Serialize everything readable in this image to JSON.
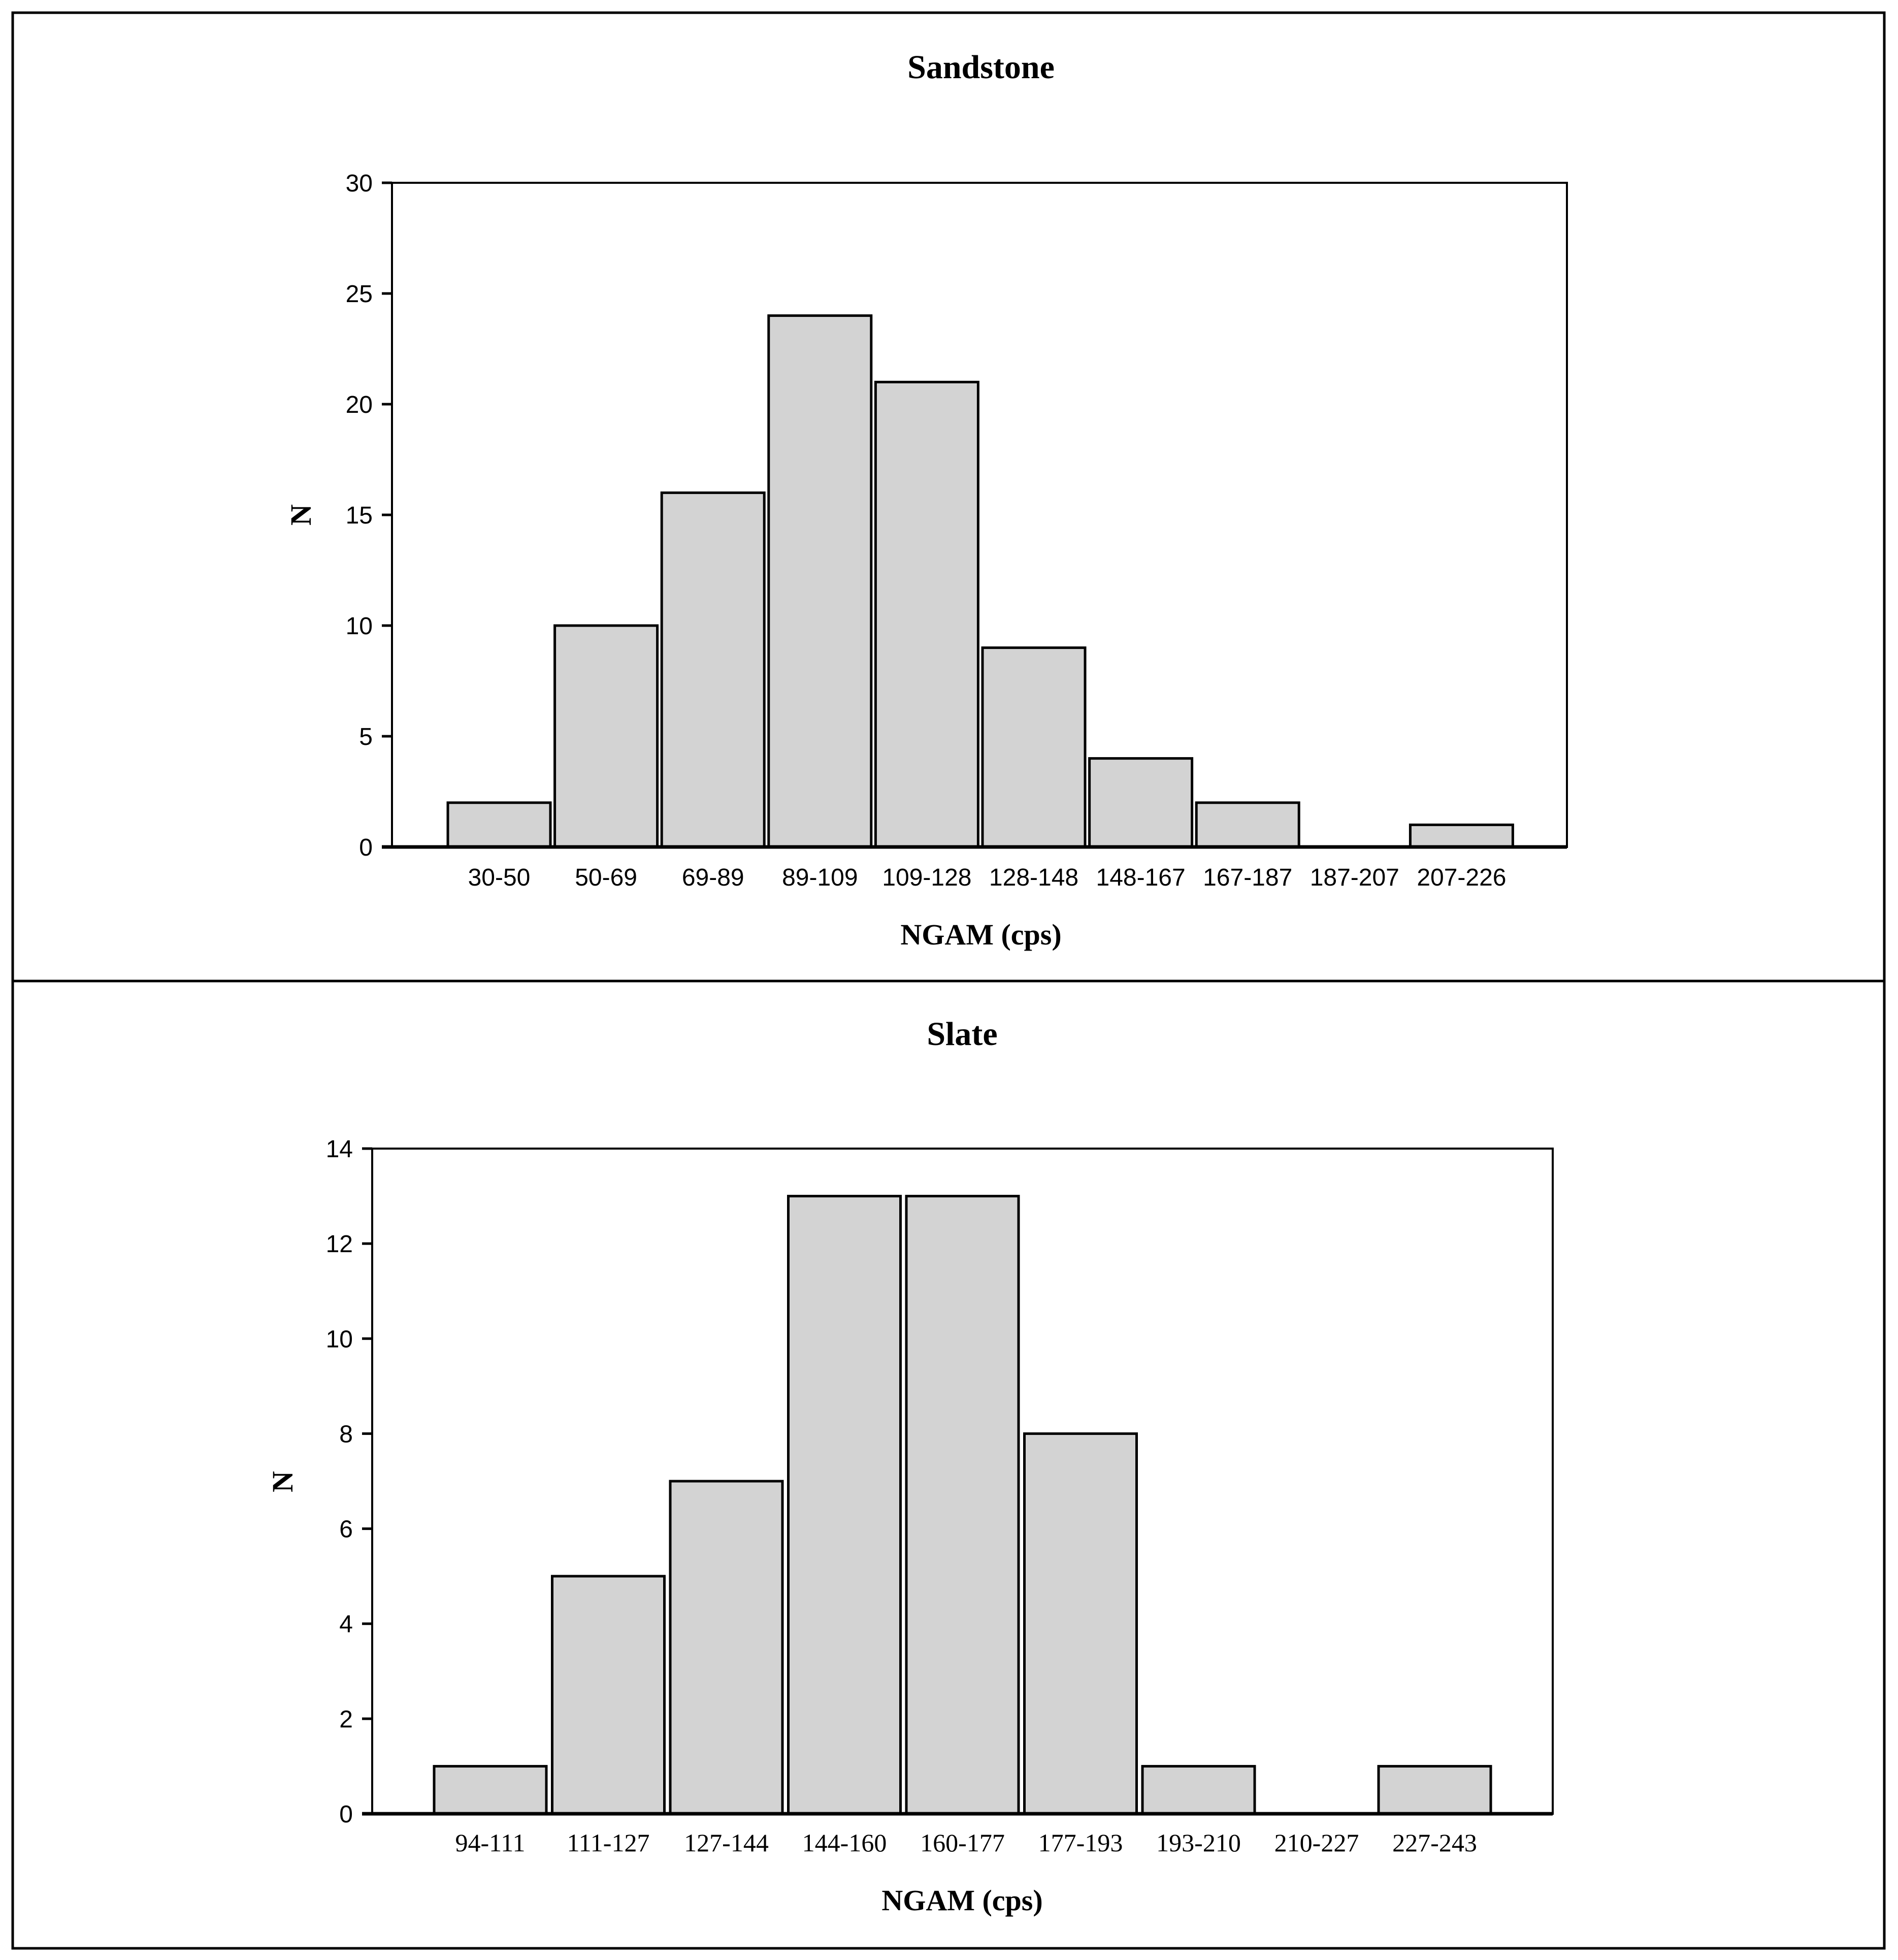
{
  "figure": {
    "panels": [
      {
        "title": "Sandstone",
        "xlabel": "NGAM (cps)",
        "ylabel": "N",
        "yticks": [
          "0",
          "5",
          "10",
          "15",
          "20",
          "25",
          "30"
        ],
        "categories": [
          "30-50",
          "50-69",
          "69-89",
          "89-109",
          "109-128",
          "128-148",
          "148-167",
          "167-187",
          "187-207",
          "207-226"
        ]
      },
      {
        "title": "Slate",
        "xlabel": "NGAM (cps)",
        "ylabel": "N",
        "yticks": [
          "0",
          "2",
          "4",
          "6",
          "8",
          "10",
          "12",
          "14"
        ],
        "categories": [
          "94-111",
          "111-127",
          "127-144",
          "144-160",
          "160-177",
          "177-193",
          "193-210",
          "210-227",
          "227-243"
        ]
      }
    ],
    "colors": {
      "bar_fill": "#d3d3d3",
      "bar_stroke": "#000000",
      "background": "#ffffff"
    }
  },
  "chart_data": [
    {
      "type": "bar",
      "title": "Sandstone",
      "xlabel": "NGAM (cps)",
      "ylabel": "N",
      "categories": [
        "30-50",
        "50-69",
        "69-89",
        "89-109",
        "109-128",
        "128-148",
        "148-167",
        "167-187",
        "187-207",
        "207-226"
      ],
      "values": [
        2,
        10,
        16,
        24,
        21,
        9,
        4,
        2,
        0,
        1
      ],
      "ylim": [
        0,
        30
      ],
      "yticks": [
        0,
        5,
        10,
        15,
        20,
        25,
        30
      ],
      "grid": false,
      "legend": null
    },
    {
      "type": "bar",
      "title": "Slate",
      "xlabel": "NGAM (cps)",
      "ylabel": "N",
      "categories": [
        "94-111",
        "111-127",
        "127-144",
        "144-160",
        "160-177",
        "177-193",
        "193-210",
        "210-227",
        "227-243"
      ],
      "values": [
        1,
        5,
        7,
        13,
        13,
        8,
        1,
        0,
        1
      ],
      "ylim": [
        0,
        14
      ],
      "yticks": [
        0,
        2,
        4,
        6,
        8,
        10,
        12,
        14
      ],
      "grid": false,
      "legend": null
    }
  ]
}
